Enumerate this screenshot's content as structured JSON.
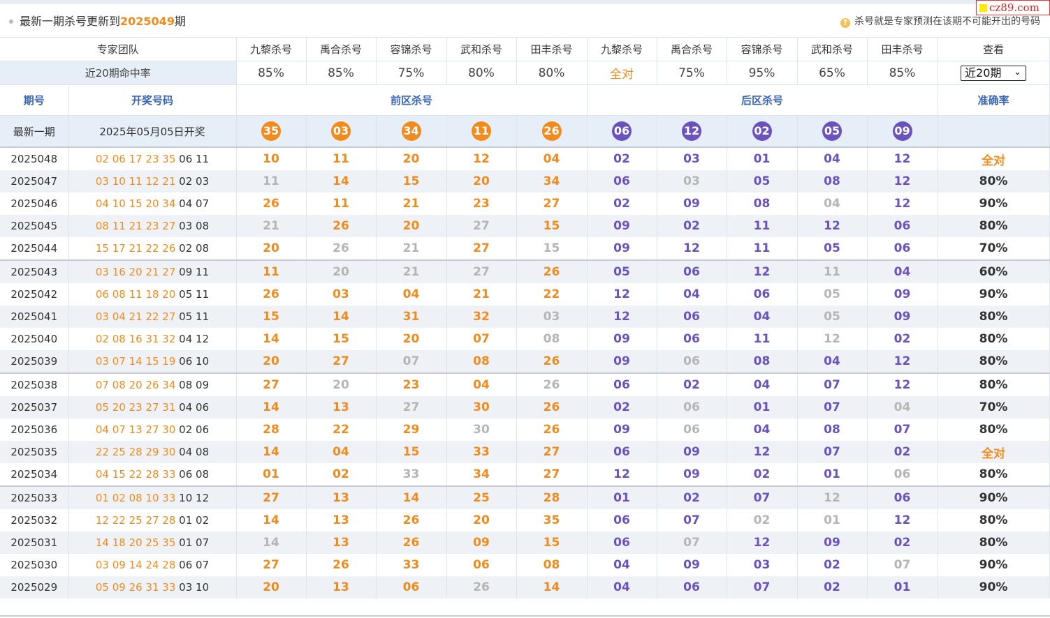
{
  "header": {
    "title_prefix": "最新一期杀号更新到",
    "title_issue": "2025049",
    "title_suffix": "期",
    "hint": "杀号就是专家预测在该期不可能开出的号码",
    "watermark": "cz89.com"
  },
  "experts": {
    "team_label": "专家团队",
    "names": [
      "九黎杀号",
      "禹合杀号",
      "容锦杀号",
      "武和杀号",
      "田丰杀号",
      "九黎杀号",
      "禹合杀号",
      "容锦杀号",
      "武和杀号",
      "田丰杀号"
    ],
    "view_label": "查看",
    "rate_label": "近20期命中率",
    "rates": [
      "85%",
      "85%",
      "75%",
      "80%",
      "80%",
      "全对",
      "75%",
      "95%",
      "65%",
      "85%"
    ],
    "range_select": "近20期"
  },
  "columns": {
    "issue": "期号",
    "draw": "开奖号码",
    "front": "前区杀号",
    "back": "后区杀号",
    "accuracy": "准确率"
  },
  "latest": {
    "label": "最新一期",
    "draw_date": "2025年05月05日开奖",
    "front_kills": [
      "35",
      "03",
      "34",
      "11",
      "26"
    ],
    "back_kills": [
      "06",
      "12",
      "02",
      "05",
      "09"
    ]
  },
  "rows": [
    {
      "issue": "2025048",
      "front": "02 06 17 23 35",
      "back": "06 11",
      "kills": [
        "10",
        "11",
        "20",
        "12",
        "04",
        "02",
        "03",
        "01",
        "04",
        "12"
      ],
      "hit": [
        0,
        0,
        0,
        0,
        0,
        0,
        0,
        0,
        0,
        0
      ],
      "acc": "全对"
    },
    {
      "issue": "2025047",
      "front": "03 10 11 12 21",
      "back": "02 03",
      "kills": [
        "11",
        "14",
        "15",
        "20",
        "34",
        "06",
        "03",
        "05",
        "08",
        "12"
      ],
      "hit": [
        1,
        0,
        0,
        0,
        0,
        0,
        1,
        0,
        0,
        0
      ],
      "acc": "80%"
    },
    {
      "issue": "2025046",
      "front": "04 10 15 20 34",
      "back": "04 07",
      "kills": [
        "26",
        "11",
        "21",
        "23",
        "27",
        "02",
        "09",
        "08",
        "04",
        "12"
      ],
      "hit": [
        0,
        0,
        0,
        0,
        0,
        0,
        0,
        0,
        1,
        0
      ],
      "acc": "90%"
    },
    {
      "issue": "2025045",
      "front": "08 11 21 23 27",
      "back": "03 08",
      "kills": [
        "21",
        "26",
        "20",
        "27",
        "15",
        "09",
        "02",
        "11",
        "12",
        "06"
      ],
      "hit": [
        1,
        0,
        0,
        1,
        0,
        0,
        0,
        0,
        0,
        0
      ],
      "acc": "80%"
    },
    {
      "issue": "2025044",
      "front": "15 17 21 22 26",
      "back": "02 08",
      "kills": [
        "20",
        "26",
        "21",
        "27",
        "15",
        "09",
        "12",
        "11",
        "05",
        "06"
      ],
      "hit": [
        0,
        1,
        1,
        0,
        1,
        0,
        0,
        0,
        0,
        0
      ],
      "acc": "70%"
    },
    {
      "issue": "2025043",
      "front": "03 16 20 21 27",
      "back": "09 11",
      "kills": [
        "11",
        "20",
        "21",
        "27",
        "26",
        "05",
        "06",
        "12",
        "11",
        "04"
      ],
      "hit": [
        0,
        1,
        1,
        1,
        0,
        0,
        0,
        0,
        1,
        0
      ],
      "acc": "60%"
    },
    {
      "issue": "2025042",
      "front": "06 08 11 18 20",
      "back": "05 11",
      "kills": [
        "26",
        "03",
        "04",
        "21",
        "22",
        "12",
        "04",
        "06",
        "05",
        "09"
      ],
      "hit": [
        0,
        0,
        0,
        0,
        0,
        0,
        0,
        0,
        1,
        0
      ],
      "acc": "90%"
    },
    {
      "issue": "2025041",
      "front": "03 04 21 22 27",
      "back": "05 11",
      "kills": [
        "15",
        "14",
        "31",
        "32",
        "03",
        "12",
        "06",
        "04",
        "05",
        "09"
      ],
      "hit": [
        0,
        0,
        0,
        0,
        1,
        0,
        0,
        0,
        1,
        0
      ],
      "acc": "80%"
    },
    {
      "issue": "2025040",
      "front": "02 08 16 31 32",
      "back": "04 12",
      "kills": [
        "14",
        "15",
        "20",
        "07",
        "08",
        "09",
        "06",
        "11",
        "12",
        "02"
      ],
      "hit": [
        0,
        0,
        0,
        0,
        1,
        0,
        0,
        0,
        1,
        0
      ],
      "acc": "80%"
    },
    {
      "issue": "2025039",
      "front": "03 07 14 15 19",
      "back": "06 10",
      "kills": [
        "20",
        "27",
        "07",
        "08",
        "26",
        "09",
        "06",
        "08",
        "04",
        "12"
      ],
      "hit": [
        0,
        0,
        1,
        0,
        0,
        0,
        1,
        0,
        0,
        0
      ],
      "acc": "80%"
    },
    {
      "issue": "2025038",
      "front": "07 08 20 26 34",
      "back": "08 09",
      "kills": [
        "27",
        "20",
        "23",
        "04",
        "26",
        "06",
        "02",
        "04",
        "07",
        "12"
      ],
      "hit": [
        0,
        1,
        0,
        0,
        1,
        0,
        0,
        0,
        0,
        0
      ],
      "acc": "80%"
    },
    {
      "issue": "2025037",
      "front": "05 20 23 27 31",
      "back": "04 06",
      "kills": [
        "14",
        "13",
        "27",
        "30",
        "26",
        "02",
        "06",
        "01",
        "07",
        "04"
      ],
      "hit": [
        0,
        0,
        1,
        0,
        0,
        0,
        1,
        0,
        0,
        1
      ],
      "acc": "70%"
    },
    {
      "issue": "2025036",
      "front": "04 07 13 27 30",
      "back": "02 06",
      "kills": [
        "28",
        "22",
        "29",
        "30",
        "26",
        "09",
        "06",
        "04",
        "08",
        "07"
      ],
      "hit": [
        0,
        0,
        0,
        1,
        0,
        0,
        1,
        0,
        0,
        0
      ],
      "acc": "80%"
    },
    {
      "issue": "2025035",
      "front": "22 25 28 29 30",
      "back": "04 08",
      "kills": [
        "14",
        "04",
        "15",
        "33",
        "27",
        "06",
        "09",
        "12",
        "07",
        "02"
      ],
      "hit": [
        0,
        0,
        0,
        0,
        0,
        0,
        0,
        0,
        0,
        0
      ],
      "acc": "全对"
    },
    {
      "issue": "2025034",
      "front": "04 15 22 28 33",
      "back": "06 08",
      "kills": [
        "01",
        "02",
        "33",
        "34",
        "27",
        "12",
        "09",
        "02",
        "01",
        "06"
      ],
      "hit": [
        0,
        0,
        1,
        0,
        0,
        0,
        0,
        0,
        0,
        1
      ],
      "acc": "80%"
    },
    {
      "issue": "2025033",
      "front": "01 02 08 10 33",
      "back": "10 12",
      "kills": [
        "27",
        "13",
        "14",
        "25",
        "28",
        "01",
        "02",
        "07",
        "12",
        "06"
      ],
      "hit": [
        0,
        0,
        0,
        0,
        0,
        0,
        0,
        0,
        1,
        0
      ],
      "acc": "90%"
    },
    {
      "issue": "2025032",
      "front": "12 22 25 27 28",
      "back": "01 02",
      "kills": [
        "14",
        "13",
        "26",
        "20",
        "35",
        "06",
        "07",
        "02",
        "01",
        "12"
      ],
      "hit": [
        0,
        0,
        0,
        0,
        0,
        0,
        0,
        1,
        1,
        0
      ],
      "acc": "80%"
    },
    {
      "issue": "2025031",
      "front": "14 18 20 25 35",
      "back": "01 07",
      "kills": [
        "14",
        "13",
        "26",
        "09",
        "15",
        "06",
        "07",
        "12",
        "09",
        "02"
      ],
      "hit": [
        1,
        0,
        0,
        0,
        0,
        0,
        1,
        0,
        0,
        0
      ],
      "acc": "80%"
    },
    {
      "issue": "2025030",
      "front": "03 09 14 24 28",
      "back": "06 07",
      "kills": [
        "27",
        "26",
        "33",
        "06",
        "08",
        "04",
        "09",
        "03",
        "02",
        "07"
      ],
      "hit": [
        0,
        0,
        0,
        0,
        0,
        0,
        0,
        0,
        0,
        1
      ],
      "acc": "90%"
    },
    {
      "issue": "2025029",
      "front": "05 09 26 31 33",
      "back": "03 10",
      "kills": [
        "20",
        "13",
        "06",
        "26",
        "14",
        "04",
        "06",
        "07",
        "02",
        "01"
      ],
      "hit": [
        0,
        0,
        0,
        1,
        0,
        0,
        0,
        0,
        0,
        0
      ],
      "acc": "90%"
    }
  ],
  "colors": {
    "front": "#f18b1b",
    "back": "#6b52bd",
    "miss": "#b5b5b5",
    "header_blue": "#3a64b4",
    "band": "#e6eef8"
  }
}
